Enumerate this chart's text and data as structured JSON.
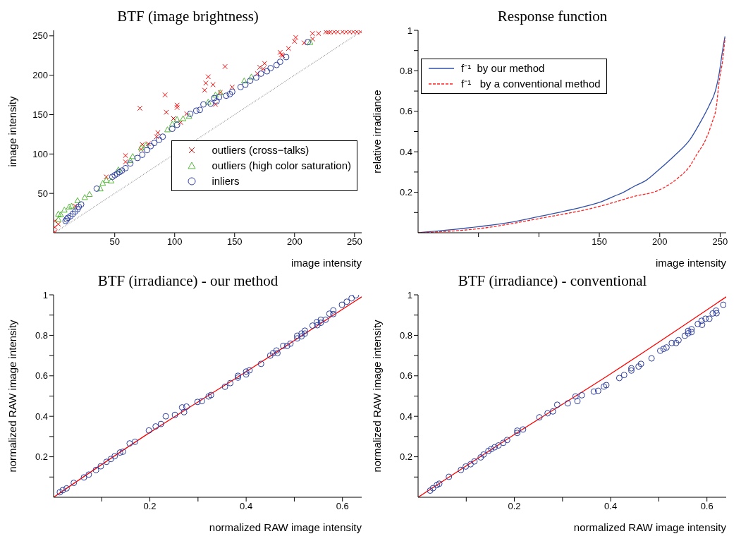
{
  "chart_data": [
    {
      "type": "scatter",
      "title": "BTF (image brightness)",
      "xlabel": "image intensity",
      "ylabel": "image intensity",
      "xlim": [
        -1,
        256
      ],
      "ylim": [
        0,
        257
      ],
      "xticks": [
        50,
        100,
        150,
        200,
        250
      ],
      "yticks": [
        50,
        100,
        150,
        200,
        250
      ],
      "legend": "bottom right",
      "series": [
        {
          "type": "line",
          "color": "#999999",
          "line_style": "dotted",
          "marker": "none",
          "x": [
            0,
            255
          ],
          "values": [
            0,
            255
          ]
        },
        {
          "name": "outliers (cross−talks)",
          "color": "#ff0000",
          "marker": "cross",
          "x": [
            0,
            0,
            0,
            3,
            17,
            43,
            59,
            59,
            72,
            73,
            78,
            85,
            86,
            93,
            92,
            71,
            102,
            102,
            99,
            105,
            110,
            134,
            125,
            126,
            128,
            132,
            138,
            142,
            148,
            169,
            171,
            174,
            175,
            188,
            189,
            190,
            195,
            200,
            201,
            208,
            215,
            215,
            220,
            226,
            228,
            230,
            233,
            236,
            240,
            243,
            246,
            249,
            252,
            255
          ],
          "values": [
            1,
            7,
            15,
            11,
            34,
            71,
            98,
            90,
            106,
            112,
            113,
            122,
            127,
            153,
            175,
            158,
            162,
            159,
            145,
            140,
            151,
            163,
            181,
            190,
            198,
            188,
            178,
            211,
            185,
            202,
            210,
            208,
            215,
            229,
            226,
            225,
            234,
            243,
            248,
            241,
            246,
            253,
            253,
            255,
            255,
            255,
            255,
            255,
            255,
            255,
            255,
            255,
            255,
            255
          ]
        },
        {
          "name": "outliers (high color saturation)",
          "color": "#55b83a",
          "marker": "triangle",
          "x": [
            3,
            3,
            5,
            8,
            12,
            14,
            19,
            25,
            29,
            38,
            40,
            43,
            47,
            53,
            63,
            65,
            72,
            76,
            94,
            98,
            102,
            107,
            112,
            128,
            134,
            138,
            158,
            164,
            213
          ],
          "values": [
            17,
            24,
            23,
            29,
            33,
            34,
            41,
            45,
            49,
            56,
            63,
            67,
            66,
            80,
            92,
            97,
            108,
            111,
            131,
            138,
            144,
            145,
            148,
            166,
            175,
            178,
            193,
            198,
            242
          ]
        },
        {
          "name": "inliers",
          "color": "#2e3f9f",
          "marker": "circle",
          "x": [
            9,
            10,
            11,
            13,
            15,
            17,
            19,
            20,
            22,
            35,
            48,
            50,
            52,
            54,
            56,
            59,
            63,
            69,
            73,
            77,
            80,
            83,
            87,
            90,
            98,
            102,
            113,
            118,
            121,
            124,
            130,
            133,
            135,
            137,
            143,
            146,
            148,
            155,
            159,
            163,
            168,
            172,
            177,
            180,
            185,
            188,
            193,
            211
          ],
          "values": [
            15,
            17,
            19,
            21,
            24,
            27,
            30,
            33,
            36,
            56,
            71,
            73,
            75,
            77,
            79,
            82,
            88,
            95,
            99,
            105,
            110,
            114,
            118,
            122,
            132,
            137,
            151,
            155,
            156,
            163,
            164,
            171,
            167,
            172,
            174,
            176,
            179,
            185,
            188,
            193,
            197,
            202,
            205,
            209,
            213,
            217,
            223,
            242
          ]
        }
      ]
    },
    {
      "type": "line",
      "title": "Response function",
      "xlabel": "image intensity",
      "ylabel": "relative irradiance",
      "xlim": [
        0,
        255
      ],
      "ylim": [
        0,
        1
      ],
      "xticks": [
        {
          "value": 50,
          "label": null
        },
        {
          "value": 100,
          "label": null
        },
        150,
        200,
        250
      ],
      "yticks": [
        {
          "value": 0.1,
          "label": null
        },
        0.2,
        {
          "value": 0.3,
          "label": null
        },
        0.4,
        {
          "value": 0.5,
          "label": null
        },
        0.6,
        {
          "value": 0.7,
          "label": null
        },
        0.8,
        {
          "value": 0.9,
          "label": null
        },
        1
      ],
      "legend": "top left",
      "series": [
        {
          "name": "f⁻¹  by our method",
          "color": "#3050a8",
          "line_style": "solid",
          "x": [
            0,
            50,
            75,
            100,
            138,
            150,
            162,
            170,
            179,
            189,
            199,
            212,
            225,
            234,
            241,
            246,
            249,
            252,
            254
          ],
          "values": [
            0,
            0.03,
            0.05,
            0.08,
            0.13,
            0.15,
            0.18,
            0.2,
            0.23,
            0.26,
            0.31,
            0.38,
            0.46,
            0.55,
            0.63,
            0.7,
            0.78,
            0.9,
            0.97
          ]
        },
        {
          "name": "f⁻¹   by a conventional method",
          "color": "#ff2020",
          "line_style": "dashed",
          "x": [
            0,
            50,
            100,
            150,
            179,
            199,
            215,
            225,
            231,
            238,
            243,
            247,
            249,
            252,
            254
          ],
          "values": [
            0,
            0.02,
            0.07,
            0.13,
            0.18,
            0.21,
            0.27,
            0.33,
            0.39,
            0.46,
            0.54,
            0.63,
            0.74,
            0.85,
            0.96
          ]
        }
      ]
    },
    {
      "type": "scatter",
      "title": "BTF (irradiance) - our method",
      "xlabel": "normalized RAW image intensity",
      "ylabel": "normalized RAW image intensity",
      "xlim": [
        0,
        0.64
      ],
      "ylim": [
        0,
        1
      ],
      "xticks": [
        {
          "value": 0.1,
          "label": null
        },
        0.2,
        {
          "value": 0.3,
          "label": null
        },
        0.4,
        {
          "value": 0.5,
          "label": null
        },
        0.6
      ],
      "yticks": [
        {
          "value": 0.1,
          "label": null
        },
        0.2,
        {
          "value": 0.3,
          "label": null
        },
        0.4,
        {
          "value": 0.5,
          "label": null
        },
        0.6,
        {
          "value": 0.7,
          "label": null
        },
        0.8,
        {
          "value": 0.9,
          "label": null
        },
        1
      ],
      "series": [
        {
          "color": "#2e3f9f",
          "marker": "circle",
          "x": [
            0.013,
            0.019,
            0.027,
            0.042,
            0.063,
            0.073,
            0.088,
            0.098,
            0.11,
            0.119,
            0.127,
            0.138,
            0.144,
            0.158,
            0.169,
            0.198,
            0.212,
            0.223,
            0.233,
            0.252,
            0.267,
            0.271,
            0.276,
            0.299,
            0.308,
            0.322,
            0.327,
            0.356,
            0.367,
            0.383,
            0.383,
            0.4,
            0.4,
            0.407,
            0.431,
            0.45,
            0.456,
            0.463,
            0.465,
            0.477,
            0.485,
            0.492,
            0.506,
            0.506,
            0.515,
            0.515,
            0.522,
            0.522,
            0.538,
            0.547,
            0.548,
            0.555,
            0.555,
            0.565,
            0.573,
            0.581,
            0.581,
            0.599,
            0.609,
            0.619,
            0.628
          ],
          "values": [
            0.025,
            0.035,
            0.044,
            0.071,
            0.098,
            0.112,
            0.135,
            0.153,
            0.175,
            0.189,
            0.203,
            0.221,
            0.225,
            0.266,
            0.274,
            0.33,
            0.35,
            0.362,
            0.4,
            0.407,
            0.444,
            0.421,
            0.448,
            0.471,
            0.475,
            0.498,
            0.505,
            0.546,
            0.564,
            0.6,
            0.591,
            0.621,
            0.607,
            0.627,
            0.659,
            0.7,
            0.712,
            0.725,
            0.712,
            0.748,
            0.748,
            0.759,
            0.798,
            0.785,
            0.809,
            0.795,
            0.823,
            0.809,
            0.848,
            0.865,
            0.85,
            0.877,
            0.862,
            0.877,
            0.907,
            0.923,
            0.905,
            0.951,
            0.966,
            0.983,
            0.998
          ]
        },
        {
          "type": "line",
          "color": "#ff0000",
          "line_style": "solid",
          "marker": "none",
          "x": [
            0,
            0.2,
            0.4,
            0.64
          ],
          "values": [
            0,
            0.32,
            0.62,
            0.99
          ]
        }
      ]
    },
    {
      "type": "scatter",
      "title": "BTF (irradiance) - conventional",
      "xlabel": "normalized RAW image intensity",
      "ylabel": "normalized RAW image intensity",
      "xlim": [
        0,
        0.64
      ],
      "ylim": [
        0,
        1
      ],
      "xticks": [
        {
          "value": 0.1,
          "label": null
        },
        0.2,
        {
          "value": 0.3,
          "label": null
        },
        0.4,
        {
          "value": 0.5,
          "label": null
        },
        0.6
      ],
      "yticks": [
        {
          "value": 0.1,
          "label": null
        },
        0.2,
        {
          "value": 0.3,
          "label": null
        },
        0.4,
        {
          "value": 0.5,
          "label": null
        },
        0.6,
        {
          "value": 0.7,
          "label": null
        },
        0.8,
        {
          "value": 0.9,
          "label": null
        },
        1
      ],
      "series": [
        {
          "color": "#2e3f9f",
          "marker": "circle",
          "x": [
            0.025,
            0.031,
            0.039,
            0.044,
            0.064,
            0.089,
            0.099,
            0.109,
            0.117,
            0.13,
            0.136,
            0.146,
            0.152,
            0.159,
            0.167,
            0.177,
            0.185,
            0.206,
            0.206,
            0.218,
            0.252,
            0.269,
            0.28,
            0.289,
            0.311,
            0.327,
            0.331,
            0.34,
            0.365,
            0.374,
            0.386,
            0.391,
            0.418,
            0.428,
            0.443,
            0.443,
            0.458,
            0.463,
            0.485,
            0.503,
            0.51,
            0.516,
            0.527,
            0.536,
            0.541,
            0.554,
            0.561,
            0.561,
            0.568,
            0.568,
            0.581,
            0.589,
            0.59,
            0.597,
            0.605,
            0.612,
            0.619,
            0.62,
            0.634
          ],
          "values": [
            0.033,
            0.045,
            0.06,
            0.067,
            0.101,
            0.135,
            0.152,
            0.163,
            0.177,
            0.197,
            0.211,
            0.229,
            0.238,
            0.247,
            0.256,
            0.269,
            0.283,
            0.329,
            0.318,
            0.335,
            0.395,
            0.415,
            0.424,
            0.457,
            0.464,
            0.498,
            0.475,
            0.504,
            0.522,
            0.526,
            0.547,
            0.554,
            0.589,
            0.604,
            0.637,
            0.626,
            0.646,
            0.659,
            0.686,
            0.724,
            0.733,
            0.74,
            0.762,
            0.762,
            0.776,
            0.798,
            0.81,
            0.822,
            0.83,
            0.816,
            0.856,
            0.872,
            0.852,
            0.882,
            0.882,
            0.908,
            0.922,
            0.909,
            0.951
          ]
        },
        {
          "type": "line",
          "color": "#ff0000",
          "line_style": "solid",
          "marker": "none",
          "x": [
            0,
            0.2,
            0.4,
            0.64
          ],
          "values": [
            0,
            0.31,
            0.61,
            0.99
          ]
        }
      ]
    }
  ]
}
